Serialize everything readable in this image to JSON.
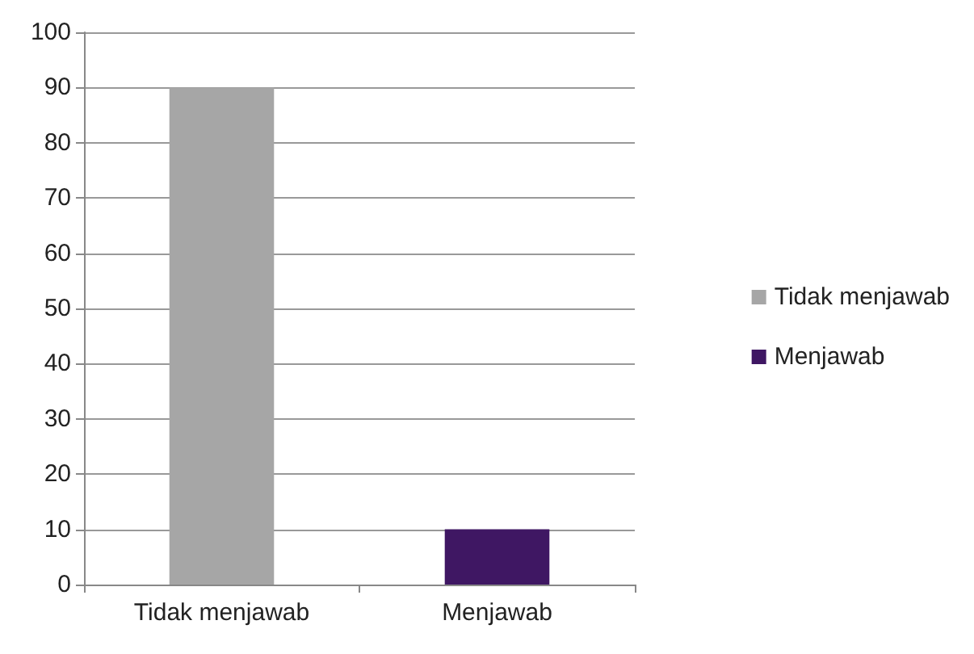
{
  "chart_data": {
    "type": "bar",
    "categories": [
      "Tidak menjawab",
      "Menjawab"
    ],
    "series": [
      {
        "name": "Tidak menjawab",
        "color": "#a6a6a6",
        "values": [
          90,
          null
        ]
      },
      {
        "name": "Menjawab",
        "color": "#3f1763",
        "values": [
          null,
          10
        ]
      }
    ],
    "ylim": [
      0,
      100
    ],
    "yticks": [
      0,
      10,
      20,
      30,
      40,
      50,
      60,
      70,
      80,
      90,
      100
    ],
    "grid": "y",
    "legend": "right"
  }
}
